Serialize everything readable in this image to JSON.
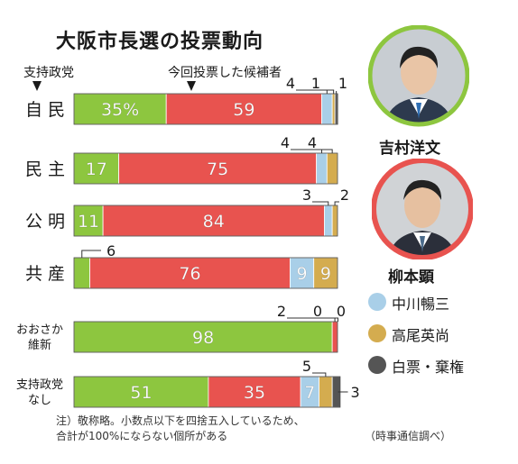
{
  "title": "大阪市長選の投票動向",
  "header": {
    "party_col": "支持政党",
    "vote_col": "今回投票した候補者"
  },
  "candidates": {
    "yoshimura": "吉村洋文",
    "yanagimoto": "柳本顕"
  },
  "legend": [
    {
      "name": "中川暢三",
      "color": "#a9cfe8"
    },
    {
      "name": "高尾英尚",
      "color": "#d4ac4f"
    },
    {
      "name": "白票・棄権",
      "color": "#555555"
    }
  ],
  "note_line1": "注）敬称略。小数点以下を四捨五入しているため、",
  "note_line2": "合計が100%にならない個所がある",
  "source": "（時事通信調べ）",
  "chart_data": {
    "type": "bar",
    "orientation": "horizontal-stacked",
    "unit": "%",
    "title": "大阪市長選の投票動向",
    "categories": [
      [
        "自民"
      ],
      [
        "民主"
      ],
      [
        "公明"
      ],
      [
        "共産"
      ],
      [
        "おおさか",
        "維新"
      ],
      [
        "支持政党",
        "なし"
      ]
    ],
    "series": [
      {
        "name": "吉村洋文",
        "color": "#8dc63f",
        "values": [
          35,
          17,
          11,
          6,
          98,
          51
        ]
      },
      {
        "name": "柳本顕",
        "color": "#e8534f",
        "values": [
          59,
          75,
          84,
          76,
          2,
          35
        ]
      },
      {
        "name": "中川暢三",
        "color": "#a9cfe8",
        "values": [
          4,
          4,
          3,
          9,
          0,
          7
        ]
      },
      {
        "name": "高尾英尚",
        "color": "#d4ac4f",
        "values": [
          1,
          4,
          2,
          9,
          0,
          5
        ]
      },
      {
        "name": "白票・棄権",
        "color": "#555555",
        "values": [
          1,
          0,
          0,
          0,
          0,
          3
        ]
      }
    ],
    "data_labels": [
      [
        "35%",
        "59",
        "4",
        "1",
        "1"
      ],
      [
        "17",
        "75",
        "4",
        "4",
        ""
      ],
      [
        "11",
        "84",
        "3",
        "2",
        ""
      ],
      [
        "6",
        "76",
        "9",
        "9",
        ""
      ],
      [
        "98",
        "2",
        "0",
        "0",
        ""
      ],
      [
        "51",
        "35",
        "7",
        "5",
        "3"
      ]
    ]
  }
}
